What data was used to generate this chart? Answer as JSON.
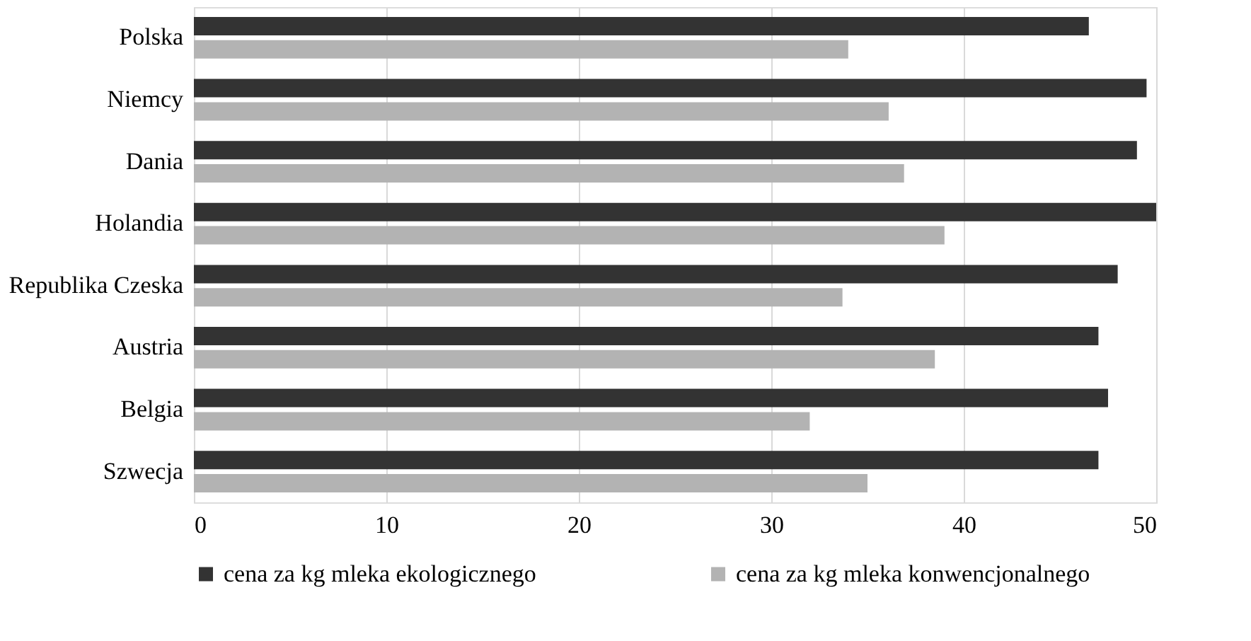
{
  "chart_data": {
    "type": "bar",
    "orientation": "horizontal",
    "categories": [
      "Polska",
      "Niemcy",
      "Dania",
      "Holandia",
      "Republika Czeska",
      "Austria",
      "Belgia",
      "Szwecja"
    ],
    "series": [
      {
        "name": "cena za kg mleka ekologicznego",
        "color": "#333333",
        "values": [
          46.5,
          49.5,
          49.0,
          50.0,
          48.0,
          47.0,
          47.5,
          47.0
        ]
      },
      {
        "name": "cena za kg mleka konwencjonalnego",
        "color": "#b3b3b3",
        "values": [
          34.0,
          36.1,
          36.9,
          39.0,
          33.7,
          38.5,
          32.0,
          35.0
        ]
      }
    ],
    "xlim": [
      0,
      50
    ],
    "xticks": [
      0,
      10,
      20,
      30,
      40,
      50
    ],
    "grid": "x",
    "legend": "bottom"
  }
}
